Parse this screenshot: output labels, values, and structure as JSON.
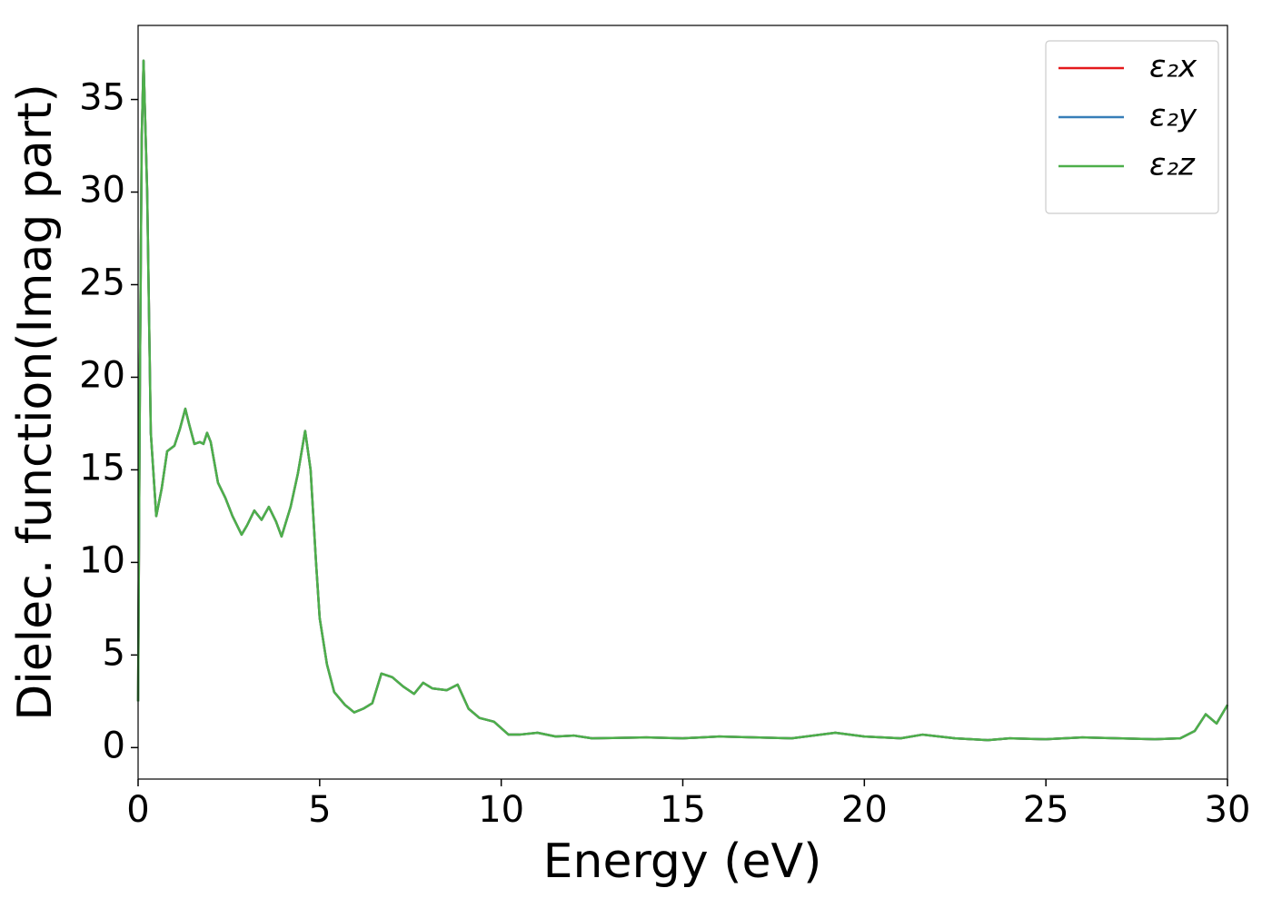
{
  "chart_data": {
    "type": "line",
    "xlabel": "Energy (eV)",
    "ylabel": "Dielec. function(Imag part)",
    "x": [
      0,
      0.05,
      0.1,
      0.15,
      0.25,
      0.35,
      0.5,
      0.65,
      0.8,
      1.0,
      1.15,
      1.3,
      1.4,
      1.55,
      1.7,
      1.8,
      1.9,
      2.0,
      2.2,
      2.4,
      2.6,
      2.85,
      3.0,
      3.2,
      3.4,
      3.6,
      3.8,
      3.95,
      4.2,
      4.4,
      4.6,
      4.75,
      4.9,
      5.0,
      5.2,
      5.4,
      5.7,
      5.95,
      6.2,
      6.45,
      6.7,
      7.0,
      7.3,
      7.6,
      7.85,
      8.1,
      8.5,
      8.8,
      9.1,
      9.4,
      9.8,
      10.2,
      10.5,
      11.0,
      11.5,
      12.0,
      12.5,
      14,
      15,
      16,
      17,
      18,
      19.2,
      20,
      21,
      21.6,
      22.5,
      23.4,
      24,
      25,
      26,
      27,
      28,
      28.7,
      29.1,
      29.4,
      29.7,
      30
    ],
    "series": [
      {
        "name": "ε₂x",
        "color": "#e41a1c",
        "values": [
          2.5,
          20,
          33,
          37.1,
          30,
          17,
          12.5,
          14,
          16,
          16.3,
          17.2,
          18.3,
          17.5,
          16.4,
          16.5,
          16.4,
          17.0,
          16.5,
          14.3,
          13.5,
          12.5,
          11.5,
          12.0,
          12.8,
          12.3,
          13.0,
          12.2,
          11.4,
          13.0,
          14.8,
          17.1,
          15,
          10,
          7,
          4.5,
          3.0,
          2.3,
          1.9,
          2.1,
          2.4,
          4.0,
          3.8,
          3.3,
          2.9,
          3.5,
          3.2,
          3.1,
          3.4,
          2.1,
          1.6,
          1.4,
          0.7,
          0.7,
          0.8,
          0.6,
          0.65,
          0.5,
          0.55,
          0.5,
          0.6,
          0.55,
          0.5,
          0.8,
          0.6,
          0.5,
          0.7,
          0.5,
          0.4,
          0.5,
          0.45,
          0.55,
          0.5,
          0.45,
          0.5,
          0.9,
          1.8,
          1.3,
          2.3
        ]
      },
      {
        "name": "ε₂y",
        "color": "#377eb8",
        "values": [
          2.5,
          20,
          33,
          37.1,
          30,
          17,
          12.5,
          14,
          16,
          16.3,
          17.2,
          18.3,
          17.5,
          16.4,
          16.5,
          16.4,
          17.0,
          16.5,
          14.3,
          13.5,
          12.5,
          11.5,
          12.0,
          12.8,
          12.3,
          13.0,
          12.2,
          11.4,
          13.0,
          14.8,
          17.1,
          15,
          10,
          7,
          4.5,
          3.0,
          2.3,
          1.9,
          2.1,
          2.4,
          4.0,
          3.8,
          3.3,
          2.9,
          3.5,
          3.2,
          3.1,
          3.4,
          2.1,
          1.6,
          1.4,
          0.7,
          0.7,
          0.8,
          0.6,
          0.65,
          0.5,
          0.55,
          0.5,
          0.6,
          0.55,
          0.5,
          0.8,
          0.6,
          0.5,
          0.7,
          0.5,
          0.4,
          0.5,
          0.45,
          0.55,
          0.5,
          0.45,
          0.5,
          0.9,
          1.8,
          1.3,
          2.3
        ]
      },
      {
        "name": "ε₂z",
        "color": "#4daf4a",
        "values": [
          2.5,
          20,
          33,
          37.1,
          30,
          17,
          12.5,
          14,
          16,
          16.3,
          17.2,
          18.3,
          17.5,
          16.4,
          16.5,
          16.4,
          17.0,
          16.5,
          14.3,
          13.5,
          12.5,
          11.5,
          12.0,
          12.8,
          12.3,
          13.0,
          12.2,
          11.4,
          13.0,
          14.8,
          17.1,
          15,
          10,
          7,
          4.5,
          3.0,
          2.3,
          1.9,
          2.1,
          2.4,
          4.0,
          3.8,
          3.3,
          2.9,
          3.5,
          3.2,
          3.1,
          3.4,
          2.1,
          1.6,
          1.4,
          0.7,
          0.7,
          0.8,
          0.6,
          0.65,
          0.5,
          0.55,
          0.5,
          0.6,
          0.55,
          0.5,
          0.8,
          0.6,
          0.5,
          0.7,
          0.5,
          0.4,
          0.5,
          0.45,
          0.55,
          0.5,
          0.45,
          0.5,
          0.9,
          1.8,
          1.3,
          2.3
        ]
      }
    ],
    "xlim": [
      0,
      30
    ],
    "xticks": [
      0,
      5,
      10,
      15,
      20,
      25,
      30
    ],
    "ylim": [
      -1.7,
      39
    ],
    "yticks": [
      0,
      5,
      10,
      15,
      20,
      25,
      30,
      35
    ],
    "legend": "upper right"
  }
}
